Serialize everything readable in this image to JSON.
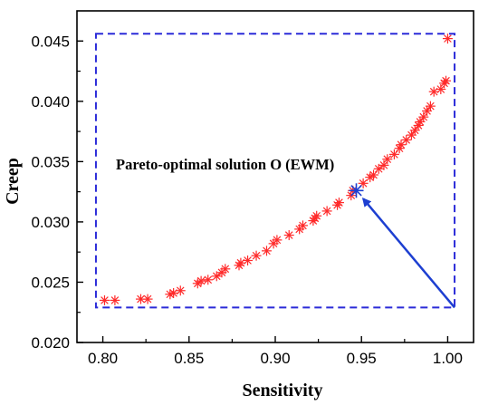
{
  "chart_data": {
    "type": "scatter",
    "xlabel": "Sensitivity",
    "ylabel": "Creep",
    "xlim": [
      0.785,
      1.015
    ],
    "ylim": [
      0.02,
      0.0475
    ],
    "xticks": [
      "0.80",
      "0.85",
      "0.90",
      "0.95",
      "1.00"
    ],
    "yticks": [
      "0.020",
      "0.025",
      "0.030",
      "0.035",
      "0.040",
      "0.045"
    ],
    "grid": false,
    "marker": "asterisk",
    "series": [
      {
        "color": "#ff2a2a",
        "points": [
          [
            0.801,
            0.0235
          ],
          [
            0.807,
            0.0235
          ],
          [
            0.822,
            0.0236
          ],
          [
            0.826,
            0.0236
          ],
          [
            0.839,
            0.024
          ],
          [
            0.841,
            0.0241
          ],
          [
            0.845,
            0.0243
          ],
          [
            0.855,
            0.0249
          ],
          [
            0.857,
            0.0251
          ],
          [
            0.861,
            0.0252
          ],
          [
            0.866,
            0.0255
          ],
          [
            0.869,
            0.0258
          ],
          [
            0.871,
            0.0261
          ],
          [
            0.879,
            0.0264
          ],
          [
            0.88,
            0.0266
          ],
          [
            0.884,
            0.0268
          ],
          [
            0.889,
            0.0272
          ],
          [
            0.895,
            0.0276
          ],
          [
            0.899,
            0.0282
          ],
          [
            0.901,
            0.0285
          ],
          [
            0.908,
            0.0289
          ],
          [
            0.914,
            0.0294
          ],
          [
            0.916,
            0.0297
          ],
          [
            0.922,
            0.0301
          ],
          [
            0.923,
            0.0303
          ],
          [
            0.924,
            0.0305
          ],
          [
            0.93,
            0.0309
          ],
          [
            0.936,
            0.0314
          ],
          [
            0.937,
            0.0316
          ],
          [
            0.944,
            0.0322
          ],
          [
            0.945,
            0.0326
          ],
          [
            0.951,
            0.0332
          ],
          [
            0.955,
            0.0337
          ],
          [
            0.957,
            0.0339
          ],
          [
            0.96,
            0.0344
          ],
          [
            0.963,
            0.0347
          ],
          [
            0.965,
            0.0352
          ],
          [
            0.969,
            0.0356
          ],
          [
            0.972,
            0.0361
          ],
          [
            0.973,
            0.0364
          ],
          [
            0.976,
            0.0368
          ],
          [
            0.979,
            0.0372
          ],
          [
            0.981,
            0.0376
          ],
          [
            0.983,
            0.038
          ],
          [
            0.984,
            0.0383
          ],
          [
            0.986,
            0.0387
          ],
          [
            0.988,
            0.0392
          ],
          [
            0.99,
            0.0396
          ],
          [
            0.992,
            0.0408
          ],
          [
            0.996,
            0.041
          ],
          [
            0.998,
            0.0415
          ],
          [
            0.999,
            0.0417
          ],
          [
            1.0,
            0.0452
          ]
        ]
      }
    ],
    "highlight": {
      "point": [
        0.947,
        0.0326
      ],
      "color": "#1d3fd1",
      "label": "Pareto-optimal solution O (EWM)",
      "arrow_from": [
        1.004,
        0.0229
      ]
    },
    "bounding_box": {
      "color": "#2b2bd8",
      "x_range": [
        0.796,
        1.004
      ],
      "y_range": [
        0.0229,
        0.0456
      ]
    }
  }
}
